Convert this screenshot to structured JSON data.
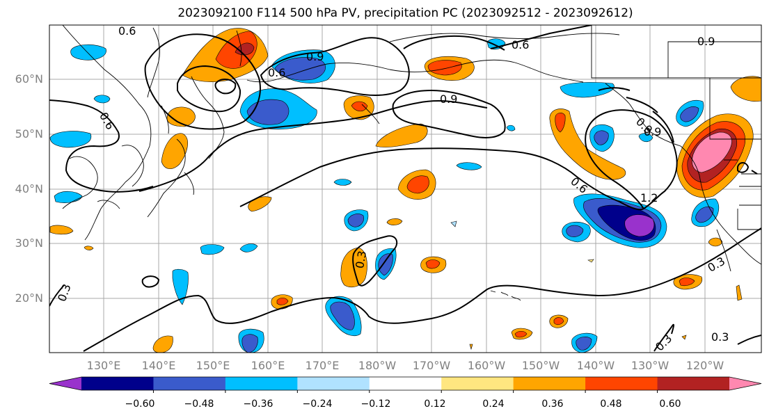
{
  "title": "2023092100 F114 500 hPa PV, precipitation PC (2023092512 - 2023092612)",
  "lat_labels": [
    "60°N",
    "50°N",
    "40°N",
    "30°N",
    "20°N"
  ],
  "lon_labels": [
    "130°E",
    "140°E",
    "150°E",
    "160°E",
    "170°E",
    "180°W",
    "170°W",
    "160°W",
    "150°W",
    "140°W",
    "130°W",
    "120°W"
  ],
  "colorbar": {
    "ticks": [
      "−0.60",
      "−0.48",
      "−0.36",
      "−0.24",
      "−0.12",
      "0.12",
      "0.24",
      "0.36",
      "0.48",
      "0.60"
    ],
    "colors": [
      "#9932cc",
      "#00008b",
      "#3a5bcc",
      "#00bfff",
      "#b0e2ff",
      "#ffffff",
      "#ffe680",
      "#ffa500",
      "#ff4500",
      "#b22222",
      "#ff88b0"
    ]
  },
  "contour_labels": [
    "0.6",
    "0.9",
    "0.6",
    "0.6",
    "0.9",
    "0.9",
    "0.6",
    "0.9",
    "0.9",
    "0.6",
    "1.2",
    "0.3",
    "0.3",
    "0.3",
    "0.3",
    "0.3"
  ]
}
